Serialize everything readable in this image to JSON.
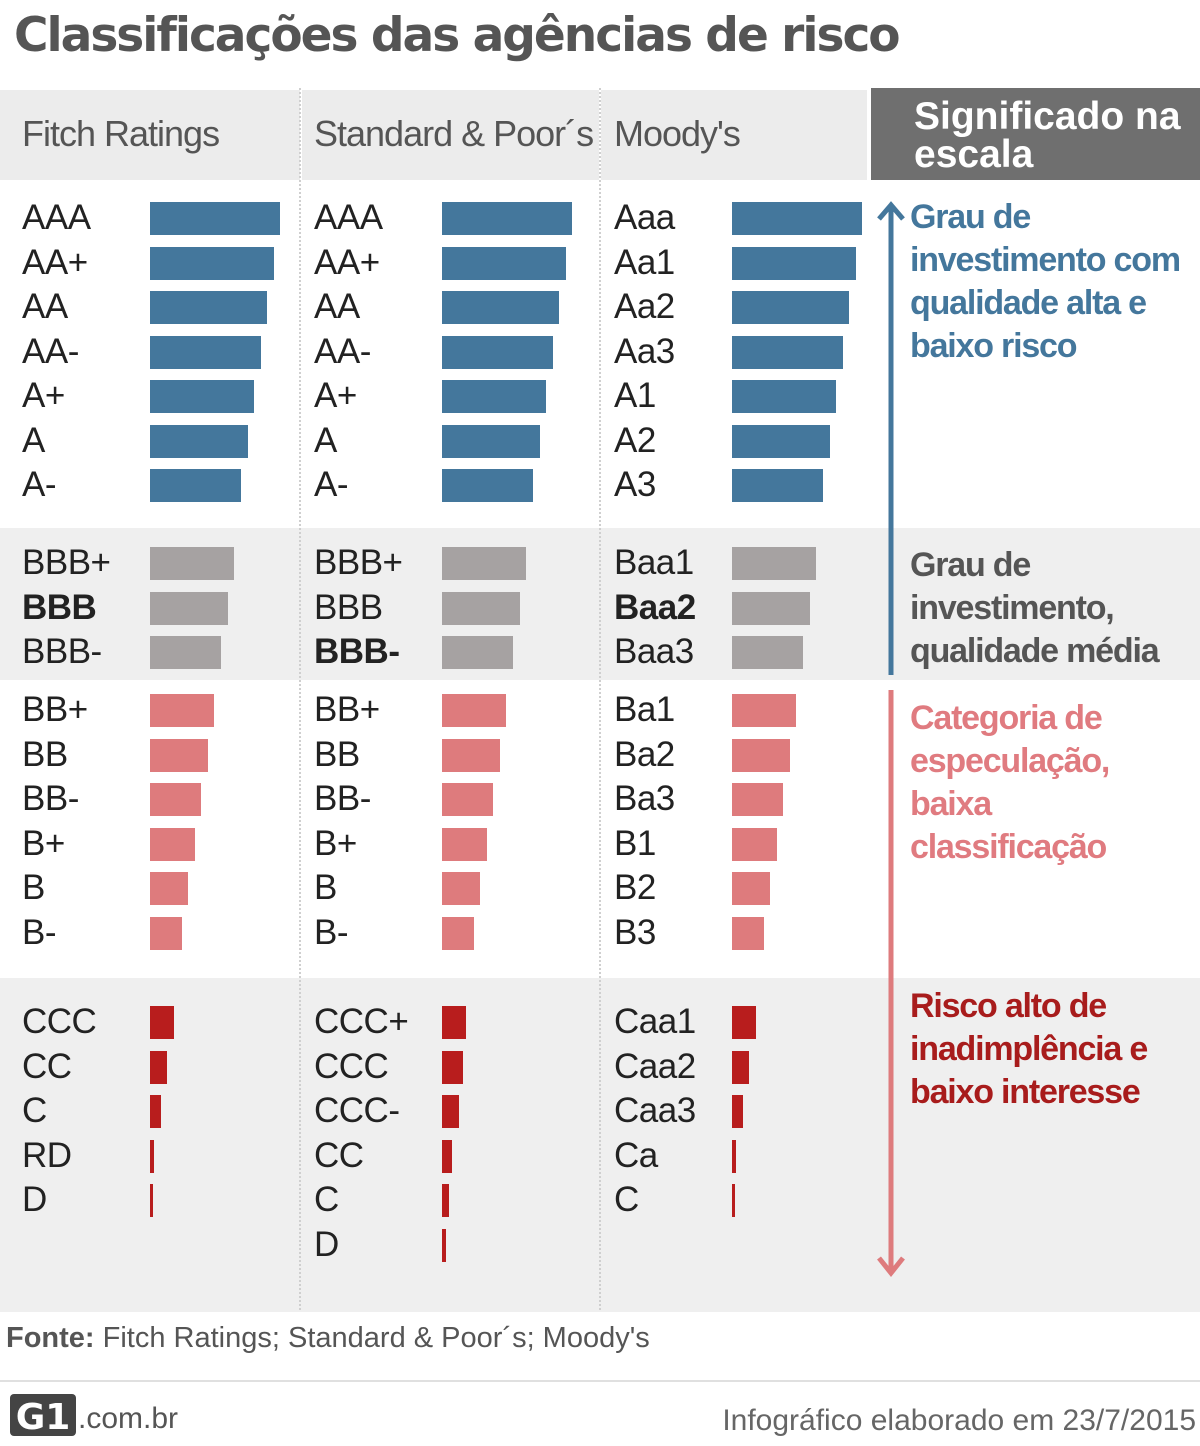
{
  "title": "Classificações das agências de risco",
  "columns": [
    {
      "name": "Fitch Ratings"
    },
    {
      "name": "Standard & Poor´s"
    },
    {
      "name": "Moody's"
    }
  ],
  "meaning_header": "Significado na escala",
  "colors": {
    "investment_high": "#44779c",
    "investment_medium": "#a6a2a2",
    "speculative": "#de7b7d",
    "high_risk": "#b81d1d",
    "medium_text": "#555555",
    "speculative_text": "#e07b80",
    "high_risk_text": "#a81c1c"
  },
  "ratings": {
    "investment_high": [
      [
        "AAA",
        "AAA",
        "Aaa"
      ],
      [
        "AA+",
        "AA+",
        "Aa1"
      ],
      [
        "AA",
        "AA",
        "Aa2"
      ],
      [
        "AA-",
        "AA-",
        "Aa3"
      ],
      [
        "A+",
        "A+",
        "A1"
      ],
      [
        "A",
        "A",
        "A2"
      ],
      [
        "A-",
        "A-",
        "A3"
      ]
    ],
    "investment_medium": [
      [
        "BBB+",
        "BBB+",
        "Baa1"
      ],
      [
        "BBB",
        "BBB",
        "Baa2"
      ],
      [
        "BBB-",
        "BBB-",
        "Baa3"
      ]
    ],
    "speculative": [
      [
        "BB+",
        "BB+",
        "Ba1"
      ],
      [
        "BB",
        "BB",
        "Ba2"
      ],
      [
        "BB-",
        "BB-",
        "Ba3"
      ],
      [
        "B+",
        "B+",
        "B1"
      ],
      [
        "B",
        "B",
        "B2"
      ],
      [
        "B-",
        "B-",
        "B3"
      ]
    ],
    "high_risk": {
      "fitch": [
        "CCC",
        "CC",
        "C",
        "RD",
        "D"
      ],
      "sp": [
        "CCC+",
        "CCC",
        "CCC-",
        "CC",
        "C",
        "D"
      ],
      "moodys": [
        "Caa1",
        "Caa2",
        "Caa3",
        "Ca",
        "C"
      ]
    },
    "bold_current": {
      "fitch": "BBB",
      "sp": "BBB-",
      "moodys": "Baa2"
    }
  },
  "meanings": {
    "investment_high": "Grau de investimento com qualidade alta e baixo risco",
    "investment_medium": "Grau de investimento, qualidade média",
    "speculative": "Categoria de especulação, baixa classificação",
    "high_risk": "Risco alto de inadimplência e baixo interesse"
  },
  "source_label": "Fonte:",
  "source_text": " Fitch Ratings; Standard & Poor´s; Moody's",
  "logo_text": "G1",
  "domain": ".com.br",
  "credit": "Infográfico elaborado em 23/7/2015"
}
